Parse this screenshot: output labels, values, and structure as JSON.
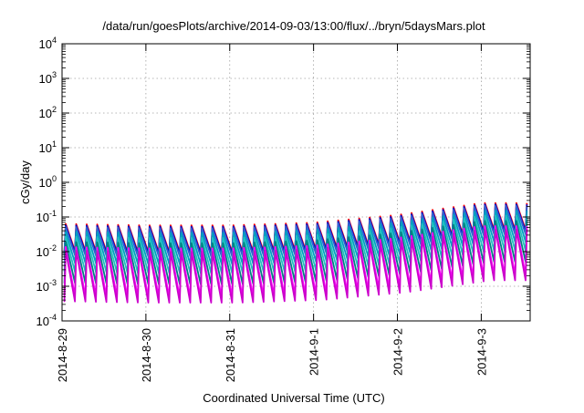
{
  "chart_data": {
    "type": "line",
    "title": "/data/run/goesPlots/archive/2014-09-03/13:00/flux/../bryn/5daysMars.plot",
    "xlabel": "Coordinated Universal Time (UTC)",
    "ylabel": "cGy/day",
    "yscale": "log",
    "ylim": [
      0.0001,
      10000
    ],
    "xlim": [
      "2014-08-29",
      "2014-09-03 14:00"
    ],
    "grid": true,
    "x_tick_labels": [
      "2014-8-29",
      "2014-8-30",
      "2014-8-31",
      "2014-9-1",
      "2014-9-2",
      "2014-9-3"
    ],
    "y_tick_labels": [
      {
        "base": "10",
        "exp": "-4"
      },
      {
        "base": "10",
        "exp": "-3"
      },
      {
        "base": "10",
        "exp": "-2"
      },
      {
        "base": "10",
        "exp": "-1"
      },
      {
        "base": "10",
        "exp": "0"
      },
      {
        "base": "10",
        "exp": "1"
      },
      {
        "base": "10",
        "exp": "2"
      },
      {
        "base": "10",
        "exp": "3"
      },
      {
        "base": "10",
        "exp": "4"
      }
    ],
    "periodic_pattern": {
      "cycles_per_day": 8,
      "description_values": "sawtooth: sharp rise to peak then decay to trough each cycle",
      "peak_by_day": [
        {
          "day": "2014-08-29",
          "peak": 0.055
        },
        {
          "day": "2014-08-30",
          "peak": 0.05
        },
        {
          "day": "2014-08-31",
          "peak": 0.05
        },
        {
          "day": "2014-09-01",
          "peak": 0.06
        },
        {
          "day": "2014-09-02",
          "peak": 0.1
        },
        {
          "day": "2014-09-03",
          "peak": 0.22
        }
      ]
    },
    "series": [
      {
        "color": "#ff0000",
        "peak_factor": 1.15,
        "trough_factor": 1.0
      },
      {
        "color": "#0000cc",
        "peak_factor": 1.05,
        "trough_factor": 0.9
      },
      {
        "color": "#3060d0",
        "peak_factor": 0.95,
        "trough_factor": 0.75
      },
      {
        "color": "#00a0c0",
        "peak_factor": 0.7,
        "trough_factor": 0.45
      },
      {
        "color": "#20c0c0",
        "peak_factor": 0.5,
        "trough_factor": 0.25
      },
      {
        "color": "#008080",
        "peak_factor": 0.35,
        "trough_factor": 0.12
      },
      {
        "color": "#ff00ff",
        "peak_factor": 0.25,
        "trough_factor": 0.05
      },
      {
        "color": "#cc00cc",
        "peak_factor": 0.2,
        "trough_factor": 0.035
      }
    ]
  }
}
